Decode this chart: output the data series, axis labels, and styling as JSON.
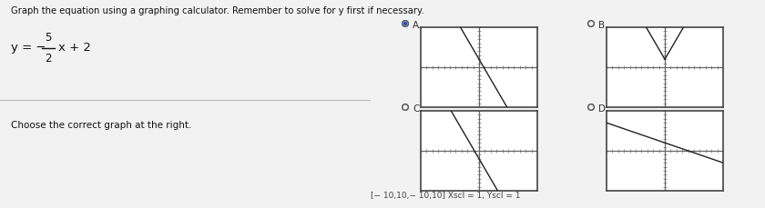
{
  "title_text": "Graph the equation using a graphing calculator. Remember to solve for y first if necessary.",
  "choose_text": "Choose the correct graph at the right.",
  "footer_text": "[−10,10,− 10,10] Xscl = 1, Yscl = 1",
  "footer_text2": "[− 10,10,− 10,10] Xscl = 1, Yscl = 1",
  "slope": -2.5,
  "intercept": 2,
  "xrange": [
    -10,
    10
  ],
  "yrange": [
    -10,
    10
  ],
  "options": [
    "A",
    "B",
    "C",
    "D"
  ],
  "selected": "A",
  "graph_configs": [
    {
      "label": "A",
      "slope": -2.5,
      "intercept": 2,
      "selected": true
    },
    {
      "label": "B",
      "slope": -2.5,
      "intercept": 2,
      "v_shape": true,
      "selected": false
    },
    {
      "label": "C",
      "slope": -2.5,
      "intercept": -2,
      "selected": false
    },
    {
      "label": "D",
      "slope": -0.5,
      "intercept": 2,
      "selected": false
    }
  ],
  "bg_color": "#f2f2f2",
  "left_bg": "#f2f2f2",
  "right_bg": "#f2f2f2",
  "graph_bg": "#ffffff",
  "border_color": "#444444",
  "line_color": "#222222",
  "axis_color": "#666666",
  "tick_color": "#888888",
  "radio_selected_color": "#1a4fcc",
  "radio_border_color": "#555555",
  "text_color": "#111111",
  "label_color": "#333333",
  "divider_color": "#bbbbbb"
}
